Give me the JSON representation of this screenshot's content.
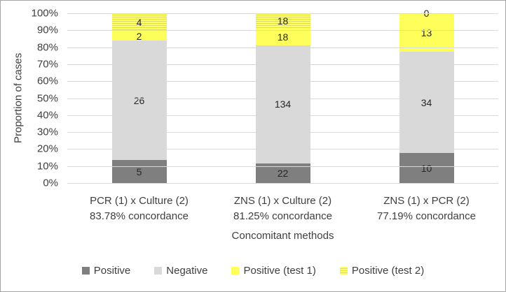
{
  "chart_data": {
    "type": "bar",
    "subtype": "100%-stacked-column",
    "title": "",
    "ylabel": "Proportion of cases",
    "xlabel": "Concomitant methods",
    "ylim": [
      0,
      100
    ],
    "grid": true,
    "y_ticks": [
      "0%",
      "10%",
      "20%",
      "30%",
      "40%",
      "50%",
      "60%",
      "70%",
      "80%",
      "90%",
      "100%"
    ],
    "categories": [
      {
        "line1": "PCR (1) x Culture (2)",
        "line2": "83.78% concordance"
      },
      {
        "line1": "ZNS (1) x Culture (2)",
        "line2": "81.25% concordance"
      },
      {
        "line1": "ZNS (1)  x PCR (2)",
        "line2": "77.19% concordance"
      }
    ],
    "series": [
      {
        "name": "Positive",
        "color": "#7f7f7f",
        "pattern": "solid",
        "values": [
          5,
          22,
          10
        ]
      },
      {
        "name": "Negative",
        "color": "#d9d9d9",
        "pattern": "solid",
        "values": [
          26,
          134,
          34
        ]
      },
      {
        "name": "Positive (test 1)",
        "color": "#ffff5c",
        "pattern": "solid",
        "values": [
          2,
          18,
          13
        ]
      },
      {
        "name": "Positive (test 2)",
        "color": "#ffff5c",
        "pattern": "hstripes",
        "stripe_color": "#d9d978",
        "values": [
          4,
          18,
          0
        ]
      }
    ],
    "legend_position": "bottom",
    "colors": {
      "gridline": "#d9d9d9",
      "figure_border": "#a6a6a6",
      "axis_text": "#3f3f3f",
      "data_label_text": "#262626"
    }
  }
}
